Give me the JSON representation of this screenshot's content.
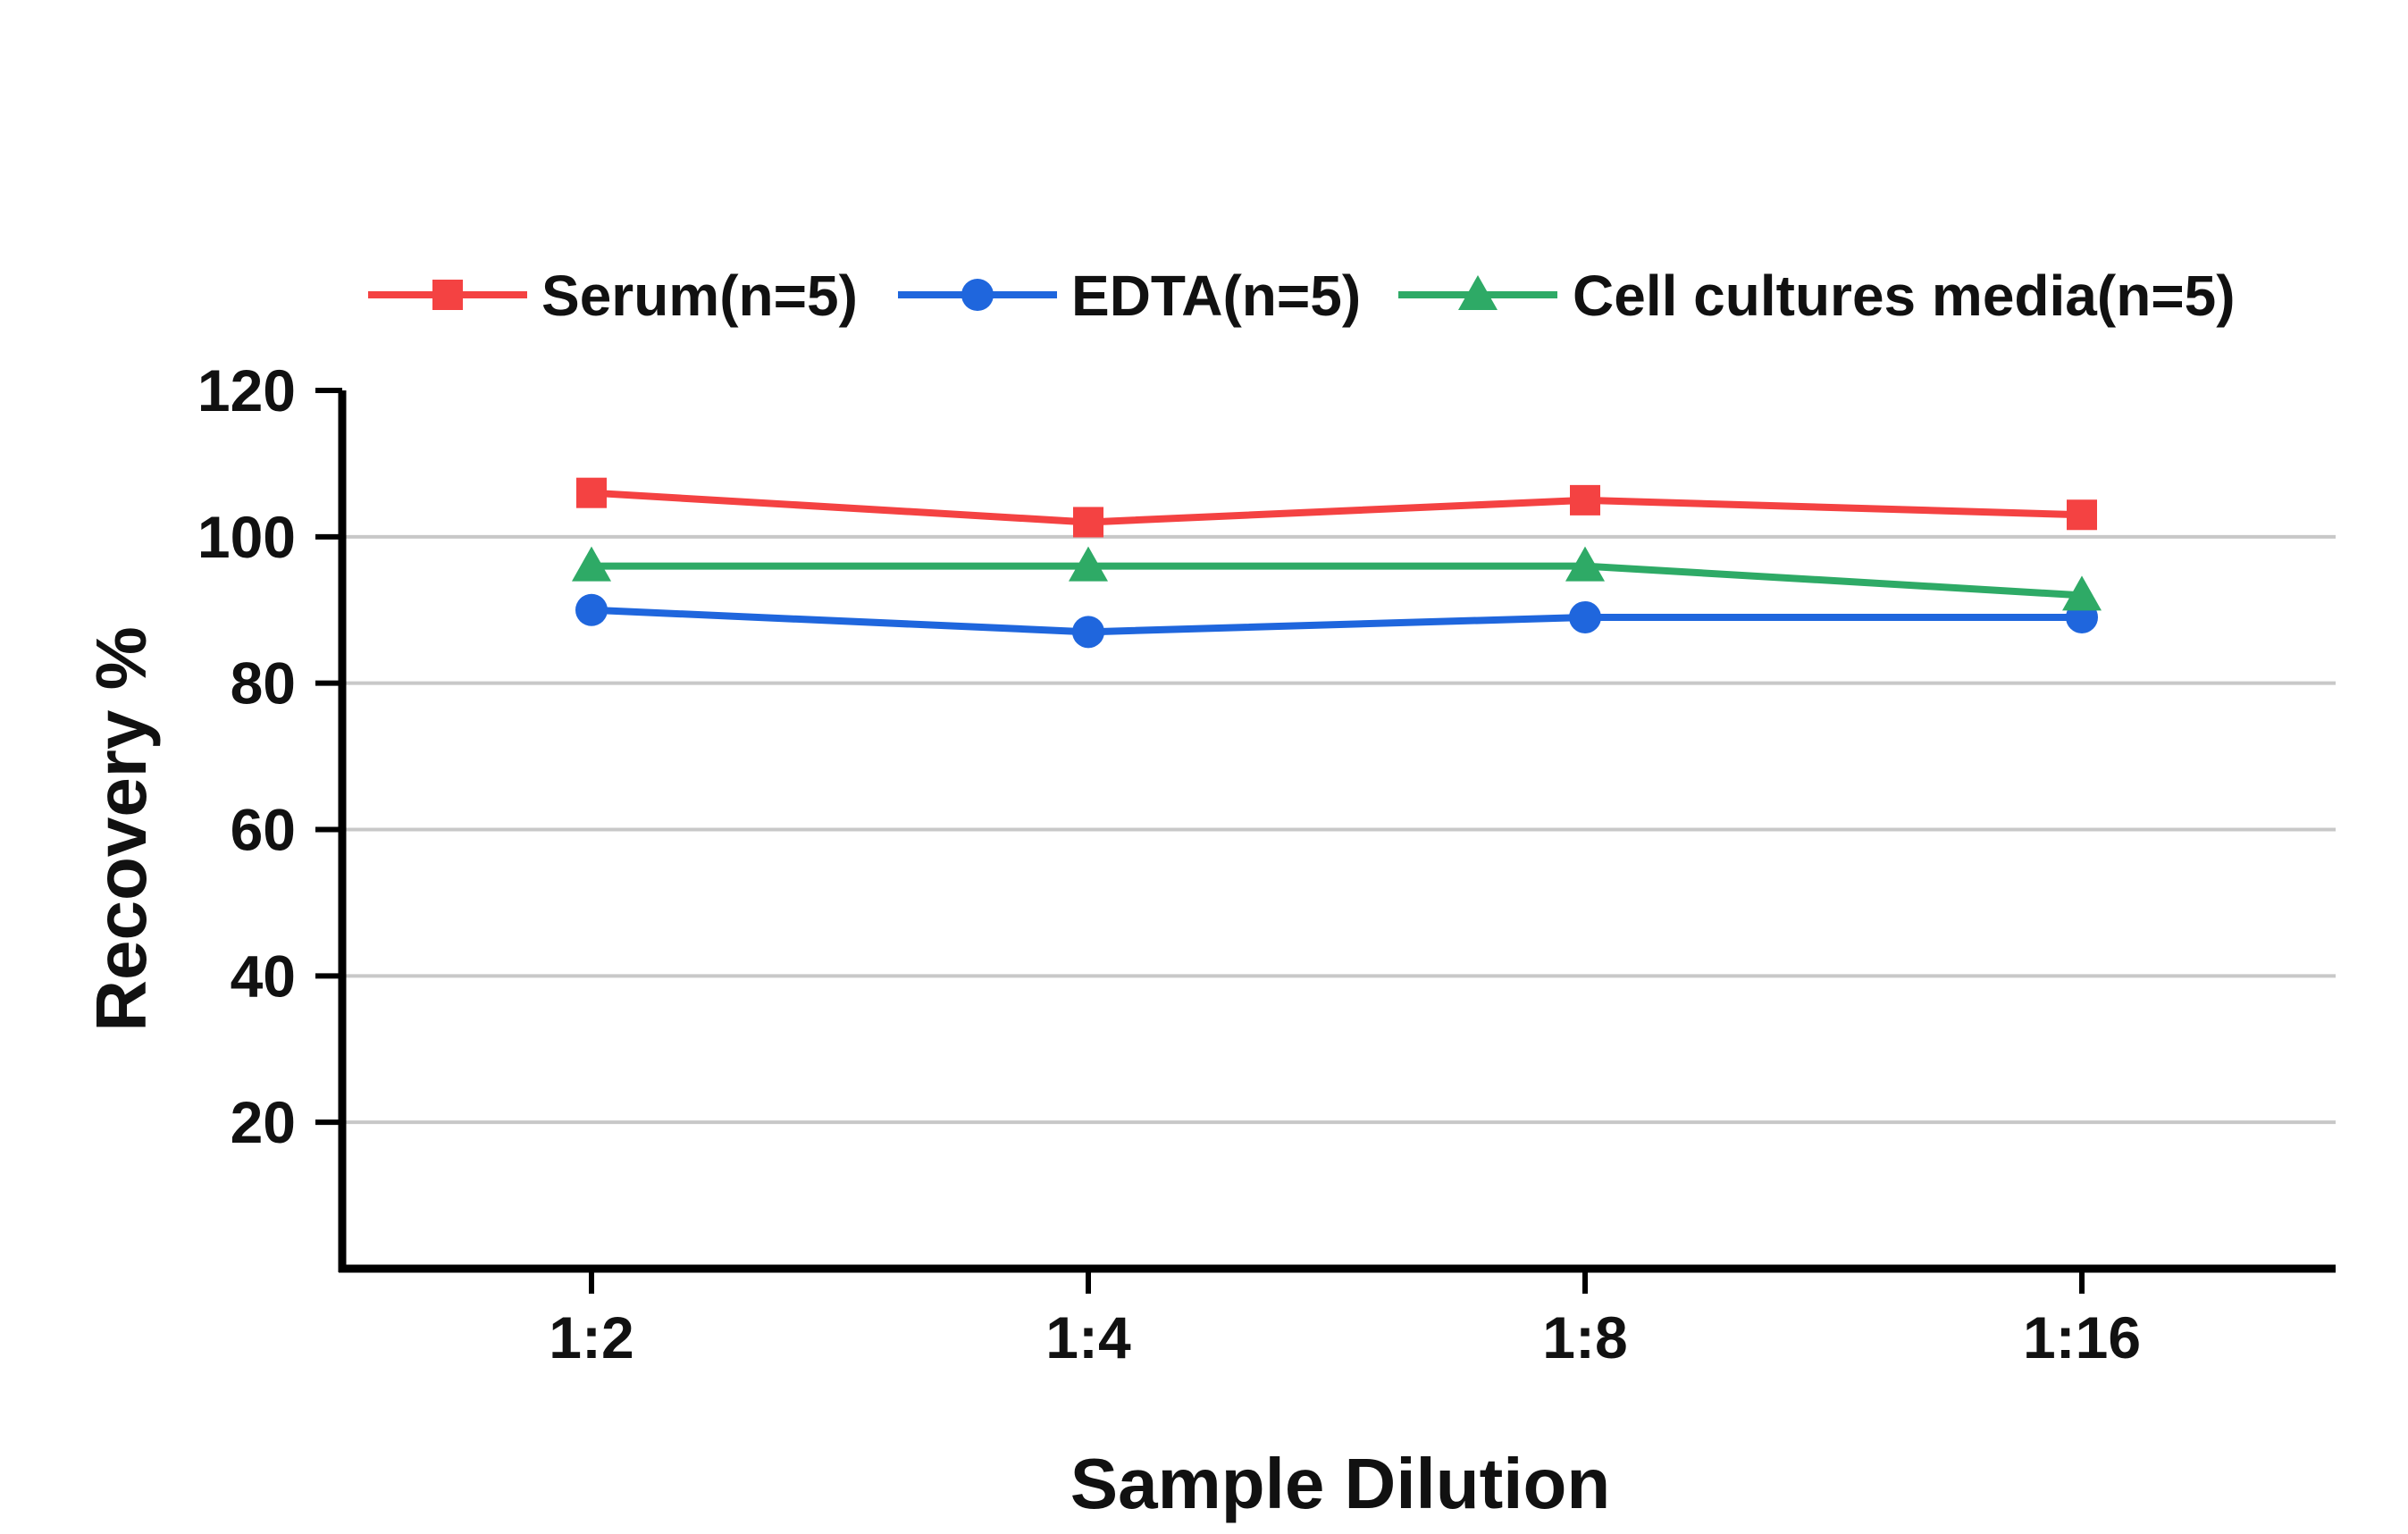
{
  "chart_data": {
    "type": "line",
    "categories": [
      "1:2",
      "1:4",
      "1:8",
      "1:16"
    ],
    "series": [
      {
        "name": "Serum(n=5)",
        "values": [
          106,
          102,
          105,
          103
        ],
        "color": "#f44242",
        "marker": "square"
      },
      {
        "name": "EDTA(n=5)",
        "values": [
          90,
          87,
          89,
          89
        ],
        "color": "#1f66dd",
        "marker": "circle"
      },
      {
        "name": "Cell cultures media(n=5)",
        "values": [
          96,
          96,
          96,
          92
        ],
        "color": "#2eaa66",
        "marker": "triangle"
      }
    ],
    "xlabel": "Sample Dilution",
    "ylabel": "Recovery %",
    "ylim": [
      0,
      120
    ],
    "yticks": [
      20,
      40,
      60,
      80,
      100,
      120
    ],
    "grid": true,
    "legend": "top"
  }
}
